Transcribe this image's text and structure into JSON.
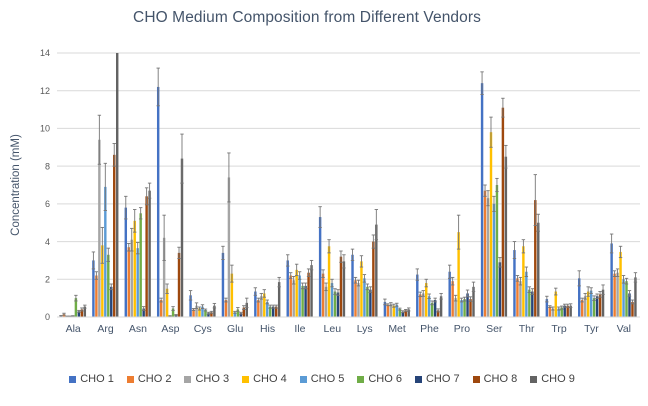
{
  "title": "CHO Medium Composition from Different Vendors",
  "chart_data": {
    "type": "bar",
    "title": "CHO Medium Composition from Different Vendors",
    "xlabel": "",
    "ylabel": "Concentration (mM)",
    "ylim": [
      0,
      14
    ],
    "ytick_step": 2,
    "ytick_labels": [
      "0",
      "2",
      "4",
      "6",
      "8",
      "10",
      "12",
      "14"
    ],
    "grid": true,
    "legend_position": "bottom",
    "error_bars": true,
    "gridline_color": "#D9D9D9",
    "error_bar_color": "#767676",
    "text_color": "#44546A",
    "tick_color": "#595959",
    "background": "#FFFFFF",
    "categories": [
      "Ala",
      "Arg",
      "Asn",
      "Asp",
      "Cys",
      "Glu",
      "His",
      "Ile",
      "Leu",
      "Lys",
      "Met",
      "Phe",
      "Pro",
      "Ser",
      "Thr",
      "Trp",
      "Tyr",
      "Val"
    ],
    "series": [
      {
        "name": "CHO 1",
        "color": "#4472C4",
        "values": [
          0.05,
          3.0,
          5.8,
          12.2,
          1.15,
          3.4,
          1.35,
          3.0,
          5.3,
          3.3,
          0.8,
          2.25,
          2.4,
          12.4,
          3.55,
          0.95,
          2.05,
          3.9
        ],
        "errors": [
          0.03,
          0.45,
          0.6,
          1.0,
          0.25,
          0.35,
          0.2,
          0.3,
          0.55,
          0.3,
          0.15,
          0.3,
          0.35,
          0.6,
          0.45,
          0.15,
          0.4,
          0.5
        ]
      },
      {
        "name": "CHO 2",
        "color": "#ED7D31",
        "values": [
          0.15,
          2.2,
          3.7,
          0.9,
          0.4,
          0.9,
          0.9,
          2.2,
          2.3,
          1.95,
          0.65,
          1.2,
          1.9,
          6.7,
          2.05,
          0.55,
          0.9,
          2.3
        ],
        "errors": [
          0.05,
          0.2,
          0.2,
          0.1,
          0.05,
          0.1,
          0.1,
          0.15,
          0.2,
          0.15,
          0.05,
          0.12,
          0.2,
          0.3,
          0.15,
          0.05,
          0.1,
          0.15
        ]
      },
      {
        "name": "CHO 3",
        "color": "#A5A5A5",
        "values": [
          0.03,
          9.4,
          4.1,
          4.2,
          0.6,
          7.4,
          1.1,
          1.95,
          1.6,
          1.8,
          0.68,
          1.25,
          1.0,
          6.3,
          1.9,
          0.45,
          1.1,
          2.35
        ],
        "errors": [
          0.02,
          1.3,
          0.6,
          1.2,
          0.15,
          1.3,
          0.15,
          0.2,
          0.2,
          0.15,
          0.08,
          0.15,
          0.15,
          0.4,
          0.2,
          0.08,
          0.15,
          0.2
        ]
      },
      {
        "name": "CHO 4",
        "color": "#FFC000",
        "values": [
          0.03,
          3.8,
          5.1,
          1.5,
          0.45,
          2.3,
          1.25,
          2.5,
          3.75,
          2.95,
          0.6,
          1.8,
          4.5,
          9.8,
          3.75,
          1.35,
          1.35,
          3.45
        ],
        "errors": [
          0.02,
          0.95,
          0.6,
          0.25,
          0.08,
          0.45,
          0.2,
          0.3,
          0.35,
          0.3,
          0.08,
          0.2,
          0.9,
          0.8,
          0.35,
          0.18,
          0.25,
          0.3
        ]
      },
      {
        "name": "CHO 5",
        "color": "#5B9BD5",
        "values": [
          0.05,
          6.9,
          3.65,
          0.05,
          0.55,
          0.25,
          0.8,
          2.2,
          1.8,
          2.05,
          0.65,
          1.1,
          0.9,
          6.0,
          2.4,
          0.45,
          1.4,
          2.0
        ],
        "errors": [
          0.02,
          1.25,
          0.3,
          0.02,
          0.1,
          0.05,
          0.1,
          0.2,
          0.2,
          0.2,
          0.08,
          0.12,
          0.1,
          0.4,
          0.25,
          0.08,
          0.15,
          0.2
        ]
      },
      {
        "name": "CHO 6",
        "color": "#70AD47",
        "values": [
          1.0,
          3.3,
          5.5,
          0.45,
          0.37,
          0.4,
          0.55,
          1.65,
          1.35,
          1.6,
          0.42,
          0.75,
          0.95,
          7.0,
          1.45,
          0.5,
          1.0,
          1.9
        ],
        "errors": [
          0.15,
          0.35,
          0.3,
          0.1,
          0.05,
          0.1,
          0.08,
          0.15,
          0.15,
          0.15,
          0.05,
          0.1,
          0.1,
          0.35,
          0.15,
          0.08,
          0.12,
          0.15
        ]
      },
      {
        "name": "CHO 7",
        "color": "#264478",
        "values": [
          0.3,
          1.6,
          0.45,
          0.1,
          0.2,
          0.2,
          0.55,
          1.65,
          1.3,
          1.45,
          0.28,
          0.9,
          1.25,
          2.9,
          1.35,
          0.6,
          1.1,
          1.25
        ],
        "errors": [
          0.05,
          0.15,
          0.1,
          0.03,
          0.05,
          0.05,
          0.08,
          0.15,
          0.15,
          0.15,
          0.05,
          0.1,
          0.18,
          0.25,
          0.15,
          0.08,
          0.12,
          0.15
        ]
      },
      {
        "name": "CHO 8",
        "color": "#9E480E",
        "values": [
          0.4,
          8.6,
          6.4,
          3.4,
          0.25,
          0.5,
          0.55,
          2.35,
          3.2,
          4.0,
          0.35,
          0.35,
          0.95,
          11.1,
          6.2,
          0.6,
          1.2,
          0.8
        ],
        "errors": [
          0.08,
          0.6,
          0.45,
          0.3,
          0.05,
          0.1,
          0.08,
          0.2,
          0.3,
          0.35,
          0.05,
          0.08,
          0.12,
          0.5,
          1.35,
          0.08,
          0.15,
          0.1
        ]
      },
      {
        "name": "CHO 9",
        "color": "#636363",
        "values": [
          0.55,
          14.0,
          6.7,
          8.4,
          0.6,
          0.75,
          1.85,
          2.75,
          2.95,
          4.9,
          0.4,
          1.1,
          1.6,
          8.5,
          5.0,
          0.6,
          1.45,
          2.1
        ],
        "errors": [
          0.08,
          0,
          0.4,
          1.3,
          0.12,
          0.25,
          0.25,
          0.25,
          0.35,
          0.8,
          0.08,
          0.15,
          0.25,
          0.6,
          0.45,
          0.1,
          0.25,
          0.25
        ]
      }
    ],
    "annotations": "CHO 9 bar at Arg is clipped at the top of the plot (value >= 14)"
  }
}
